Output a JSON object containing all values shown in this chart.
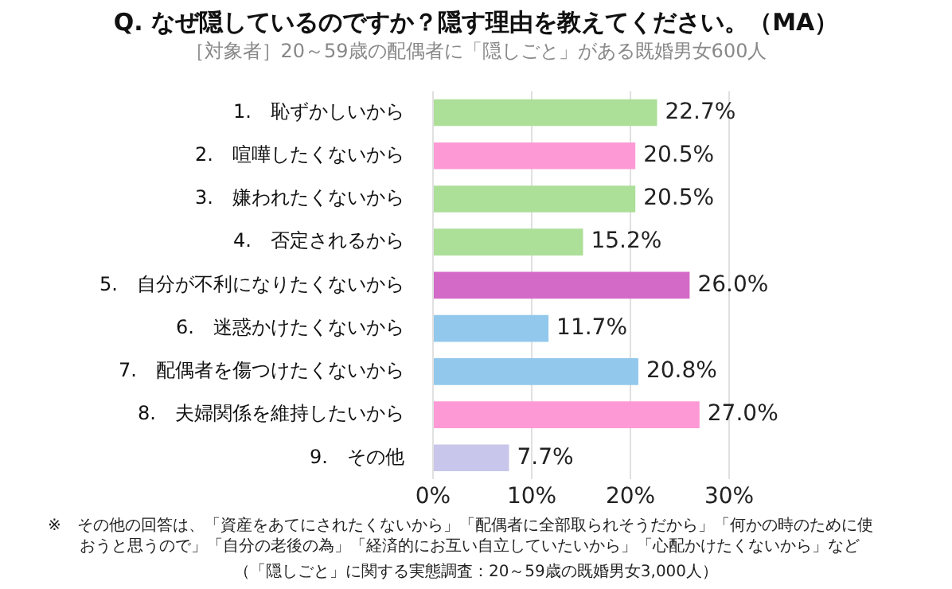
{
  "chart_data": {
    "type": "bar",
    "orientation": "horizontal",
    "title": "Q. なぜ隠しているのですか？隠す理由を教えてください。（MA）",
    "subtitle": "［対象者］20～59歳の配偶者に「隠しごと」がある既婚男女600人",
    "categories": [
      "1.　恥ずかしいから",
      "2.　喧嘩したくないから",
      "3.　嫌われたくないから",
      "4.　否定されるから",
      "5.　自分が不利になりたくないから",
      "6.　迷惑かけたくないから",
      "7.　配偶者を傷つけたくないから",
      "8.　夫婦関係を維持したいから",
      "9.　その他"
    ],
    "values": [
      22.7,
      20.5,
      20.5,
      15.2,
      26.0,
      11.7,
      20.8,
      27.0,
      7.7
    ],
    "value_labels": [
      "22.7%",
      "20.5%",
      "20.5%",
      "15.2%",
      "26.0%",
      "11.7%",
      "20.8%",
      "27.0%",
      "7.7%"
    ],
    "colors": [
      "#acdf98",
      "#fd9ad6",
      "#acdf98",
      "#acdf98",
      "#d46ac8",
      "#92c8ec",
      "#92c8ec",
      "#fd9ad6",
      "#c8c6ea"
    ],
    "xlim": [
      0,
      30
    ],
    "xticks": [
      {
        "value": 0,
        "label": "0%"
      },
      {
        "value": 10,
        "label": "10%"
      },
      {
        "value": 20,
        "label": "20%"
      },
      {
        "value": 30,
        "label": "30%"
      }
    ],
    "grid": "x",
    "annotations": [
      "※　その他の回答は、「資産をあてにされたくないから」「配偶者に全部取られそうだから」「何かの時のために使おうと思うので」「自分の老後の為」「経済的にお互い自立していたいから」「心配かけたくないから」など",
      "（「隠しごと」に関する実態調査：20～59歳の既婚男女3,000人）"
    ]
  }
}
